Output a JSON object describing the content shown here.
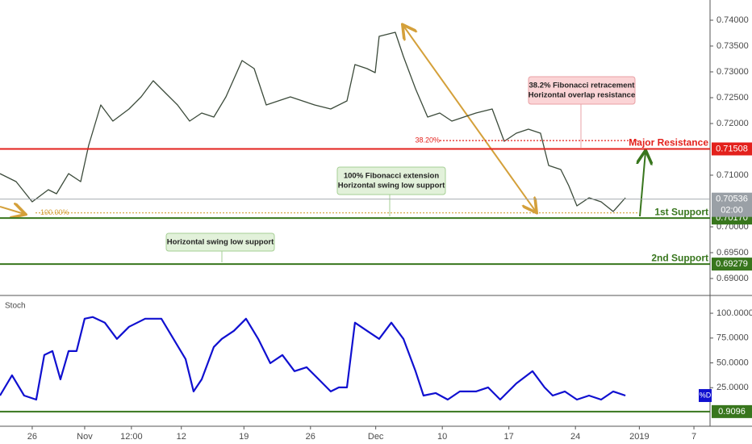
{
  "chart_data": [
    {
      "type": "line",
      "xlim": [
        -2.42,
        50.91
      ],
      "xticks": [
        {
          "value": 0,
          "label": "26"
        },
        {
          "value": 3.94,
          "label": "Nov"
        },
        {
          "value": 7.45,
          "label": "12:00"
        },
        {
          "value": 11.2,
          "label": "12"
        },
        {
          "value": 15.9,
          "label": "19"
        },
        {
          "value": 20.9,
          "label": "26"
        },
        {
          "value": 25.8,
          "label": "Dec"
        },
        {
          "value": 30.8,
          "label": "10"
        },
        {
          "value": 35.8,
          "label": "17"
        },
        {
          "value": 40.8,
          "label": "24"
        },
        {
          "value": 45.6,
          "label": "2019"
        },
        {
          "value": 49.7,
          "label": "7"
        }
      ],
      "ylim": [
        0.68687,
        0.74391
      ],
      "yticks": [
        {
          "value": 0.74,
          "label": "0.74000"
        },
        {
          "value": 0.735,
          "label": "0.73500"
        },
        {
          "value": 0.73,
          "label": "0.73000"
        },
        {
          "value": 0.725,
          "label": "0.72500"
        },
        {
          "value": 0.72,
          "label": "0.72000"
        },
        {
          "value": 0.71,
          "label": "0.71000"
        },
        {
          "value": 0.7,
          "label": "0.70000"
        },
        {
          "value": 0.695,
          "label": "0.69500"
        },
        {
          "value": 0.69,
          "label": "0.69000"
        }
      ],
      "series": [
        {
          "color": "#3b4a3a",
          "x": [
            -2.42,
            -1.21,
            0,
            1.21,
            1.82,
            2.73,
            3.64,
            4.24,
            5.15,
            6.06,
            7.27,
            8.18,
            9.09,
            10,
            10.91,
            11.82,
            12.73,
            13.64,
            14.55,
            15.76,
            16.67,
            17.58,
            18.48,
            19.39,
            20.3,
            21.21,
            22.42,
            23.64,
            24.24,
            25.15,
            25.76,
            26.06,
            27.27,
            27.88,
            28.79,
            29.7,
            30.61,
            31.52,
            32.42,
            33.33,
            34.55,
            35.45,
            36.36,
            37.27,
            38.18,
            38.79,
            39.7,
            40.3,
            40.91,
            41.82,
            42.73,
            43.64,
            44.55
          ],
          "values": [
            0.7103,
            0.70875,
            0.70484,
            0.70719,
            0.70641,
            0.7103,
            0.70875,
            0.71578,
            0.72359,
            0.72047,
            0.72281,
            0.72516,
            0.72828,
            0.72594,
            0.72359,
            0.72047,
            0.72203,
            0.72125,
            0.72516,
            0.73219,
            0.73063,
            0.72359,
            0.72438,
            0.72516,
            0.72438,
            0.72359,
            0.72281,
            0.72438,
            0.73141,
            0.73063,
            0.72984,
            0.73688,
            0.73766,
            0.73297,
            0.72672,
            0.72125,
            0.72203,
            0.72047,
            0.72125,
            0.72203,
            0.72281,
            0.71656,
            0.71813,
            0.71891,
            0.71813,
            0.71188,
            0.71109,
            0.70797,
            0.70406,
            0.70563,
            0.70484,
            0.70297,
            0.70563
          ]
        }
      ],
      "levels": [
        {
          "name": "Major Resistance",
          "value": 0.71508,
          "color": "#e3211c"
        },
        {
          "name": "1st Support",
          "value": 0.7017,
          "value_label": "0.70170",
          "color": "#38761d"
        },
        {
          "name": "2nd Support",
          "value": 0.69279,
          "color": "#38761d"
        }
      ],
      "last": {
        "value": 0.70536,
        "countdown": "02:00",
        "color": "#9aa0a6"
      },
      "fib_levels": [
        {
          "label": "38.20%",
          "value": 0.7167,
          "color": "#e3211c"
        },
        {
          "label": "100.00%",
          "value": 0.7027,
          "color": "#d4a03a"
        }
      ],
      "annotations": [
        {
          "lines": [
            "38.2% Fibonacci retracement",
            "Horizontal overlap resistance"
          ]
        },
        {
          "lines": [
            "100% Fibonacci extension",
            "Horizontal swing low support"
          ]
        },
        {
          "lines": [
            "Horizontal swing low support"
          ]
        }
      ]
    },
    {
      "type": "line",
      "title": "Stoch",
      "ylim": [
        -11.4,
        116.3
      ],
      "yticks": [
        {
          "value": 100,
          "label": "100.0000"
        },
        {
          "value": 75,
          "label": "75.0000"
        },
        {
          "value": 50,
          "label": "50.0000"
        },
        {
          "value": 25,
          "label": "25.0000"
        }
      ],
      "series": [
        {
          "name": "%D",
          "color": "#1010d0",
          "x": [
            -2.42,
            -1.52,
            -0.61,
            0.3,
            0.91,
            1.52,
            2.12,
            2.73,
            3.33,
            3.94,
            4.55,
            5.45,
            6.36,
            7.27,
            8.48,
            9.7,
            10.61,
            11.52,
            12.12,
            12.73,
            13.64,
            14.24,
            15.15,
            16.06,
            16.97,
            17.88,
            18.79,
            19.7,
            20.61,
            21.52,
            22.42,
            23.03,
            23.64,
            24.24,
            25.15,
            26.06,
            26.97,
            27.88,
            28.79,
            29.39,
            30.3,
            31.21,
            32.12,
            33.33,
            34.24,
            35.15,
            35.76,
            36.36,
            37.58,
            38.48,
            39.09,
            40,
            40.91,
            41.82,
            42.73,
            43.64,
            44.55
          ],
          "values": [
            17.1,
            37.5,
            17.1,
            13,
            57.9,
            61.9,
            33.4,
            61.9,
            61.9,
            94.5,
            96.2,
            90.5,
            74.2,
            86.4,
            94.5,
            94.5,
            74.2,
            53.8,
            21.2,
            33.4,
            66,
            74.2,
            82.3,
            94.5,
            74.2,
            49.7,
            57.9,
            41.6,
            45.6,
            33.4,
            21.2,
            25.3,
            25.3,
            90.5,
            82.3,
            74.2,
            90.5,
            74.2,
            41.6,
            17.1,
            19.6,
            13,
            21.2,
            21.2,
            25.3,
            13,
            21.2,
            29.3,
            41.6,
            25.3,
            17.1,
            21.2,
            13,
            17.1,
            13,
            21.2,
            17.1
          ]
        }
      ],
      "levels": [
        {
          "value": 0.9096,
          "color": "#38761d"
        }
      ]
    }
  ]
}
